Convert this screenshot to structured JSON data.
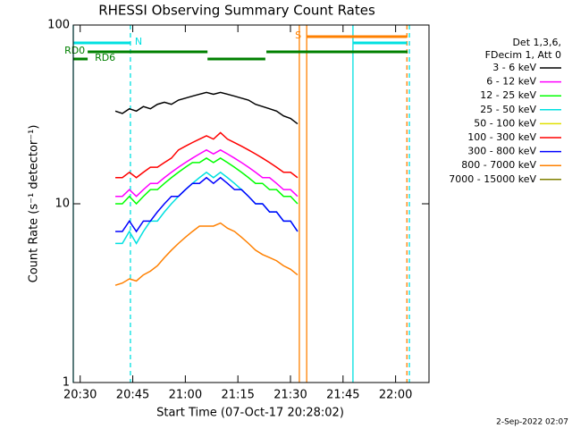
{
  "chart_data": {
    "type": "line",
    "title": "RHESSI Observing Summary Count Rates",
    "x_label": "Start Time (07-Oct-17 20:28:02)",
    "y_label": "Count Rate (s⁻¹ detector⁻¹)",
    "legend_title": [
      "Det 1,3,6,",
      "FDecim 1, Att 0"
    ],
    "footer": "2-Sep-2022 02:07",
    "log_y": true,
    "ylim": [
      1,
      100
    ],
    "yticks": [
      1,
      10,
      100
    ],
    "xlim": [
      0,
      101.5
    ],
    "xticks": [
      {
        "value": 1.97,
        "label": "20:30"
      },
      {
        "value": 16.97,
        "label": "20:45"
      },
      {
        "value": 31.97,
        "label": "21:00"
      },
      {
        "value": 46.97,
        "label": "21:15"
      },
      {
        "value": 61.97,
        "label": "21:30"
      },
      {
        "value": 76.97,
        "label": "21:45"
      },
      {
        "value": 91.97,
        "label": "22:00"
      }
    ],
    "x": [
      12,
      14,
      16,
      18,
      20,
      22,
      24,
      26,
      28,
      30,
      32,
      34,
      36,
      38,
      40,
      42,
      44,
      46,
      48,
      50,
      52,
      54,
      56,
      58,
      60,
      62,
      64
    ],
    "series": [
      {
        "name": "3 - 6 keV",
        "color": "#000000",
        "values": [
          33,
          32,
          34,
          33,
          35,
          34,
          36,
          37,
          36,
          38,
          39,
          40,
          41,
          42,
          41,
          42,
          41,
          40,
          39,
          38,
          36,
          35,
          34,
          33,
          31,
          30,
          28
        ]
      },
      {
        "name": "6 - 12 keV",
        "color": "#ff00ff",
        "values": [
          11,
          11,
          12,
          11,
          12,
          13,
          13,
          14,
          15,
          16,
          17,
          18,
          19,
          20,
          19,
          20,
          19,
          18,
          17,
          16,
          15,
          14,
          14,
          13,
          12,
          12,
          11
        ]
      },
      {
        "name": "12 - 25 keV",
        "color": "#00ff00",
        "values": [
          10,
          10,
          11,
          10,
          11,
          12,
          12,
          13,
          14,
          15,
          16,
          17,
          17,
          18,
          17,
          18,
          17,
          16,
          15,
          14,
          13,
          13,
          12,
          12,
          11,
          11,
          10
        ]
      },
      {
        "name": "25 - 50 keV",
        "color": "#00e0e0",
        "values": [
          6,
          6,
          7,
          6,
          7,
          8,
          8,
          9,
          10,
          11,
          12,
          13,
          14,
          15,
          14,
          15,
          14,
          13,
          12,
          11,
          10,
          10,
          9,
          9,
          8,
          8,
          7
        ]
      },
      {
        "name": "50 - 100 keV",
        "color": "#e0e000",
        "values": [
          null,
          null,
          null,
          null,
          null,
          null,
          null,
          null,
          null,
          null,
          null,
          null,
          null,
          null,
          null,
          null,
          null,
          null,
          null,
          null,
          null,
          null,
          null,
          null,
          null,
          null,
          null
        ]
      },
      {
        "name": "100 - 300 keV",
        "color": "#ff0000",
        "values": [
          14,
          14,
          15,
          14,
          15,
          16,
          16,
          17,
          18,
          20,
          21,
          22,
          23,
          24,
          23,
          25,
          23,
          22,
          21,
          20,
          19,
          18,
          17,
          16,
          15,
          15,
          14
        ]
      },
      {
        "name": "300 - 800 keV",
        "color": "#0000ff",
        "values": [
          7,
          7,
          8,
          7,
          8,
          8,
          9,
          10,
          11,
          11,
          12,
          13,
          13,
          14,
          13,
          14,
          13,
          12,
          12,
          11,
          10,
          10,
          9,
          9,
          8,
          8,
          7
        ]
      },
      {
        "name": "800 - 7000 keV",
        "color": "#ff8000",
        "values": [
          3.5,
          3.6,
          3.8,
          3.7,
          4,
          4.2,
          4.5,
          5,
          5.5,
          6,
          6.5,
          7,
          7.5,
          7.5,
          7.5,
          7.8,
          7.3,
          7,
          6.5,
          6,
          5.5,
          5.2,
          5,
          4.8,
          4.5,
          4.3,
          4
        ]
      },
      {
        "name": "7000 - 15000 keV",
        "color": "#808000",
        "values": [
          null,
          null,
          null,
          null,
          null,
          null,
          null,
          null,
          null,
          null,
          null,
          null,
          null,
          null,
          null,
          null,
          null,
          null,
          null,
          null,
          null,
          null,
          null,
          null,
          null,
          null,
          null
        ]
      }
    ],
    "markers": [
      {
        "x": 0,
        "color": "#00e0e0",
        "dashed": false
      },
      {
        "x": 16.3,
        "color": "#00e0e0",
        "dashed": true
      },
      {
        "x": 64.5,
        "color": "#ff8000",
        "dashed": false
      },
      {
        "x": 66.6,
        "color": "#ff8000",
        "dashed": false
      },
      {
        "x": 79.8,
        "color": "#00e0e0",
        "dashed": false
      },
      {
        "x": 95.2,
        "color": "#ff8000",
        "dashed": true
      },
      {
        "x": 95.9,
        "color": "#00e0e0",
        "dashed": true
      }
    ],
    "flags": [
      {
        "label": "N",
        "color": "#00e0e0",
        "start": 0,
        "end": 16.3,
        "level": 0
      },
      {
        "label": "S",
        "color": "#ff8000",
        "start": 66.6,
        "end": 95.2,
        "level": 1
      },
      {
        "label": null,
        "color": "#00e0e0",
        "start": 79.8,
        "end": 95.2,
        "level": 0
      },
      {
        "label": "RD0",
        "color": "#008000",
        "start": 4.1,
        "end": 38.3,
        "level": 2
      },
      {
        "label": null,
        "color": "#008000",
        "start": 55.1,
        "end": 95.4,
        "level": 2
      },
      {
        "label": null,
        "color": "#008000",
        "start": 38.3,
        "end": 54.8,
        "level": 3
      },
      {
        "label": "RD6",
        "color": "#008000",
        "start": 0,
        "end": 4.1,
        "level": 3
      }
    ]
  }
}
